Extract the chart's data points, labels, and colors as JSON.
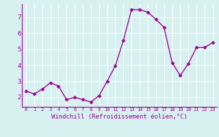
{
  "x": [
    0,
    1,
    2,
    3,
    4,
    5,
    6,
    7,
    8,
    9,
    10,
    11,
    12,
    13,
    14,
    15,
    16,
    17,
    18,
    19,
    20,
    21,
    22,
    23
  ],
  "y": [
    2.4,
    2.2,
    2.5,
    2.9,
    2.7,
    1.85,
    2.0,
    1.85,
    1.7,
    2.1,
    3.0,
    3.95,
    5.55,
    7.45,
    7.45,
    7.3,
    6.85,
    6.35,
    4.15,
    3.35,
    4.1,
    5.1,
    5.1,
    5.4
  ],
  "line_color": "#990099",
  "marker": "D",
  "markersize": 2.5,
  "linewidth": 1.0,
  "xlabel": "Windchill (Refroidissement éolien,°C)",
  "xlabel_fontsize": 6.5,
  "ylabel_ticks": [
    2,
    3,
    4,
    5,
    6,
    7
  ],
  "xtick_labels": [
    "0",
    "1",
    "2",
    "3",
    "4",
    "5",
    "6",
    "7",
    "8",
    "9",
    "10",
    "11",
    "12",
    "13",
    "14",
    "15",
    "16",
    "17",
    "18",
    "19",
    "20",
    "21",
    "22",
    "23"
  ],
  "xlim": [
    -0.5,
    23.5
  ],
  "ylim": [
    1.4,
    7.8
  ],
  "bg_color": "#d7f0f0",
  "grid_color": "#ffffff",
  "tick_color": "#990099",
  "spine_color": "#990099"
}
